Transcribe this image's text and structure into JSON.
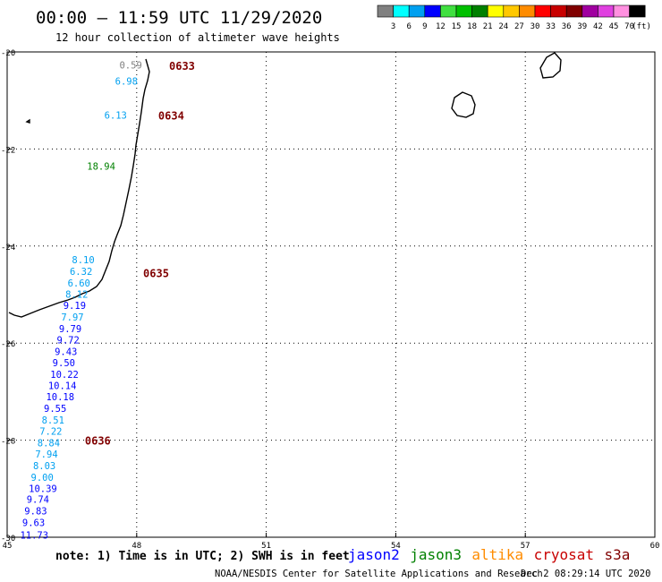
{
  "header": {
    "title": "00:00 — 11:59 UTC 11/29/2020",
    "subtitle": "12 hour collection of altimeter wave heights"
  },
  "legend": {
    "unit": "(ft)",
    "bins": [
      {
        "label": "3",
        "color": "#808080"
      },
      {
        "label": "6",
        "color": "#00ffff"
      },
      {
        "label": "9",
        "color": "#00a0f0"
      },
      {
        "label": "12",
        "color": "#0000ff"
      },
      {
        "label": "15",
        "color": "#40e040"
      },
      {
        "label": "18",
        "color": "#00c000"
      },
      {
        "label": "21",
        "color": "#008000"
      },
      {
        "label": "24",
        "color": "#ffff00"
      },
      {
        "label": "27",
        "color": "#ffc800"
      },
      {
        "label": "30",
        "color": "#ff8c00"
      },
      {
        "label": "33",
        "color": "#ff0000"
      },
      {
        "label": "36",
        "color": "#c80000"
      },
      {
        "label": "39",
        "color": "#800000"
      },
      {
        "label": "42",
        "color": "#a000a0"
      },
      {
        "label": "45",
        "color": "#e040e0"
      },
      {
        "label": "70",
        "color": "#ff90e0"
      },
      {
        "label": "",
        "color": "#000000"
      }
    ]
  },
  "axes": {
    "lat_ticks": [
      "-20",
      "-22",
      "-24",
      "-26",
      "-28",
      "-30"
    ],
    "lon_ticks": [
      "45",
      "48",
      "51",
      "54",
      "57",
      "60"
    ],
    "lon_range": [
      45,
      60
    ],
    "lat_range": [
      -30,
      -20
    ]
  },
  "swh_points": [
    {
      "text": "0.59",
      "lon": 47.6,
      "lat": -20.27,
      "color": "#808080"
    },
    {
      "text": "6.98",
      "lon": 47.5,
      "lat": -20.6,
      "color": "#00a0f0"
    },
    {
      "text": "6.13",
      "lon": 47.25,
      "lat": -21.3,
      "color": "#00a0f0"
    },
    {
      "text": "18.94",
      "lon": 46.85,
      "lat": -22.35,
      "color": "#008000"
    },
    {
      "text": "8.10",
      "lon": 46.5,
      "lat": -24.28,
      "color": "#00a0f0"
    },
    {
      "text": "6.32",
      "lon": 46.45,
      "lat": -24.52,
      "color": "#00a0f0"
    },
    {
      "text": "6.60",
      "lon": 46.4,
      "lat": -24.76,
      "color": "#00a0f0"
    },
    {
      "text": "8.12",
      "lon": 46.35,
      "lat": -24.99,
      "color": "#00a0f0"
    },
    {
      "text": "9.19",
      "lon": 46.3,
      "lat": -25.22,
      "color": "#0000ff"
    },
    {
      "text": "7.97",
      "lon": 46.25,
      "lat": -25.46,
      "color": "#00a0f0"
    },
    {
      "text": "9.79",
      "lon": 46.2,
      "lat": -25.7,
      "color": "#0000ff"
    },
    {
      "text": "9.72",
      "lon": 46.15,
      "lat": -25.93,
      "color": "#0000ff"
    },
    {
      "text": "9.43",
      "lon": 46.1,
      "lat": -26.17,
      "color": "#0000ff"
    },
    {
      "text": "9.50",
      "lon": 46.05,
      "lat": -26.4,
      "color": "#0000ff"
    },
    {
      "text": "10.22",
      "lon": 46.0,
      "lat": -26.64,
      "color": "#0000ff"
    },
    {
      "text": "10.14",
      "lon": 45.95,
      "lat": -26.87,
      "color": "#0000ff"
    },
    {
      "text": "10.18",
      "lon": 45.9,
      "lat": -27.1,
      "color": "#0000ff"
    },
    {
      "text": "9.55",
      "lon": 45.85,
      "lat": -27.34,
      "color": "#0000ff"
    },
    {
      "text": "8.51",
      "lon": 45.8,
      "lat": -27.58,
      "color": "#00a0f0"
    },
    {
      "text": "7.22",
      "lon": 45.75,
      "lat": -27.81,
      "color": "#00a0f0"
    },
    {
      "text": "8.84",
      "lon": 45.7,
      "lat": -28.05,
      "color": "#00a0f0"
    },
    {
      "text": "7.94",
      "lon": 45.65,
      "lat": -28.28,
      "color": "#00a0f0"
    },
    {
      "text": "8.03",
      "lon": 45.6,
      "lat": -28.52,
      "color": "#00a0f0"
    },
    {
      "text": "9.00",
      "lon": 45.55,
      "lat": -28.76,
      "color": "#00a0f0"
    },
    {
      "text": "10.39",
      "lon": 45.5,
      "lat": -28.99,
      "color": "#0000ff"
    },
    {
      "text": "9.74",
      "lon": 45.45,
      "lat": -29.22,
      "color": "#0000ff"
    },
    {
      "text": "9.83",
      "lon": 45.4,
      "lat": -29.46,
      "color": "#0000ff"
    },
    {
      "text": "9.63",
      "lon": 45.35,
      "lat": -29.7,
      "color": "#0000ff"
    },
    {
      "text": "11.73",
      "lon": 45.3,
      "lat": -29.95,
      "color": "#0000ff"
    }
  ],
  "time_labels": [
    {
      "text": "0633",
      "lon": 48.75,
      "lat": -20.28,
      "color": "#800000"
    },
    {
      "text": "0634",
      "lon": 48.5,
      "lat": -21.3,
      "color": "#800000"
    },
    {
      "text": "0635",
      "lon": 48.15,
      "lat": -24.55,
      "color": "#800000"
    },
    {
      "text": "0636",
      "lon": 46.8,
      "lat": -28.0,
      "color": "#800000"
    }
  ],
  "satellites": [
    {
      "name": "jason2",
      "color": "#0000ff"
    },
    {
      "name": "jason3",
      "color": "#008000"
    },
    {
      "name": "altika",
      "color": "#ff8c00"
    },
    {
      "name": "cryosat",
      "color": "#c80000"
    },
    {
      "name": "s3a",
      "color": "#800000"
    }
  ],
  "footer": {
    "note": "note: 1) Time is in UTC; 2) SWH is in feet",
    "credit": "NOAA/NESDIS Center for Satellite Applications and Research",
    "timestamp": "Dec  2 08:29:14 UTC 2020"
  },
  "colors": {
    "coastline": "#000000",
    "grid": "#000000",
    "axis_text": "#000000"
  }
}
